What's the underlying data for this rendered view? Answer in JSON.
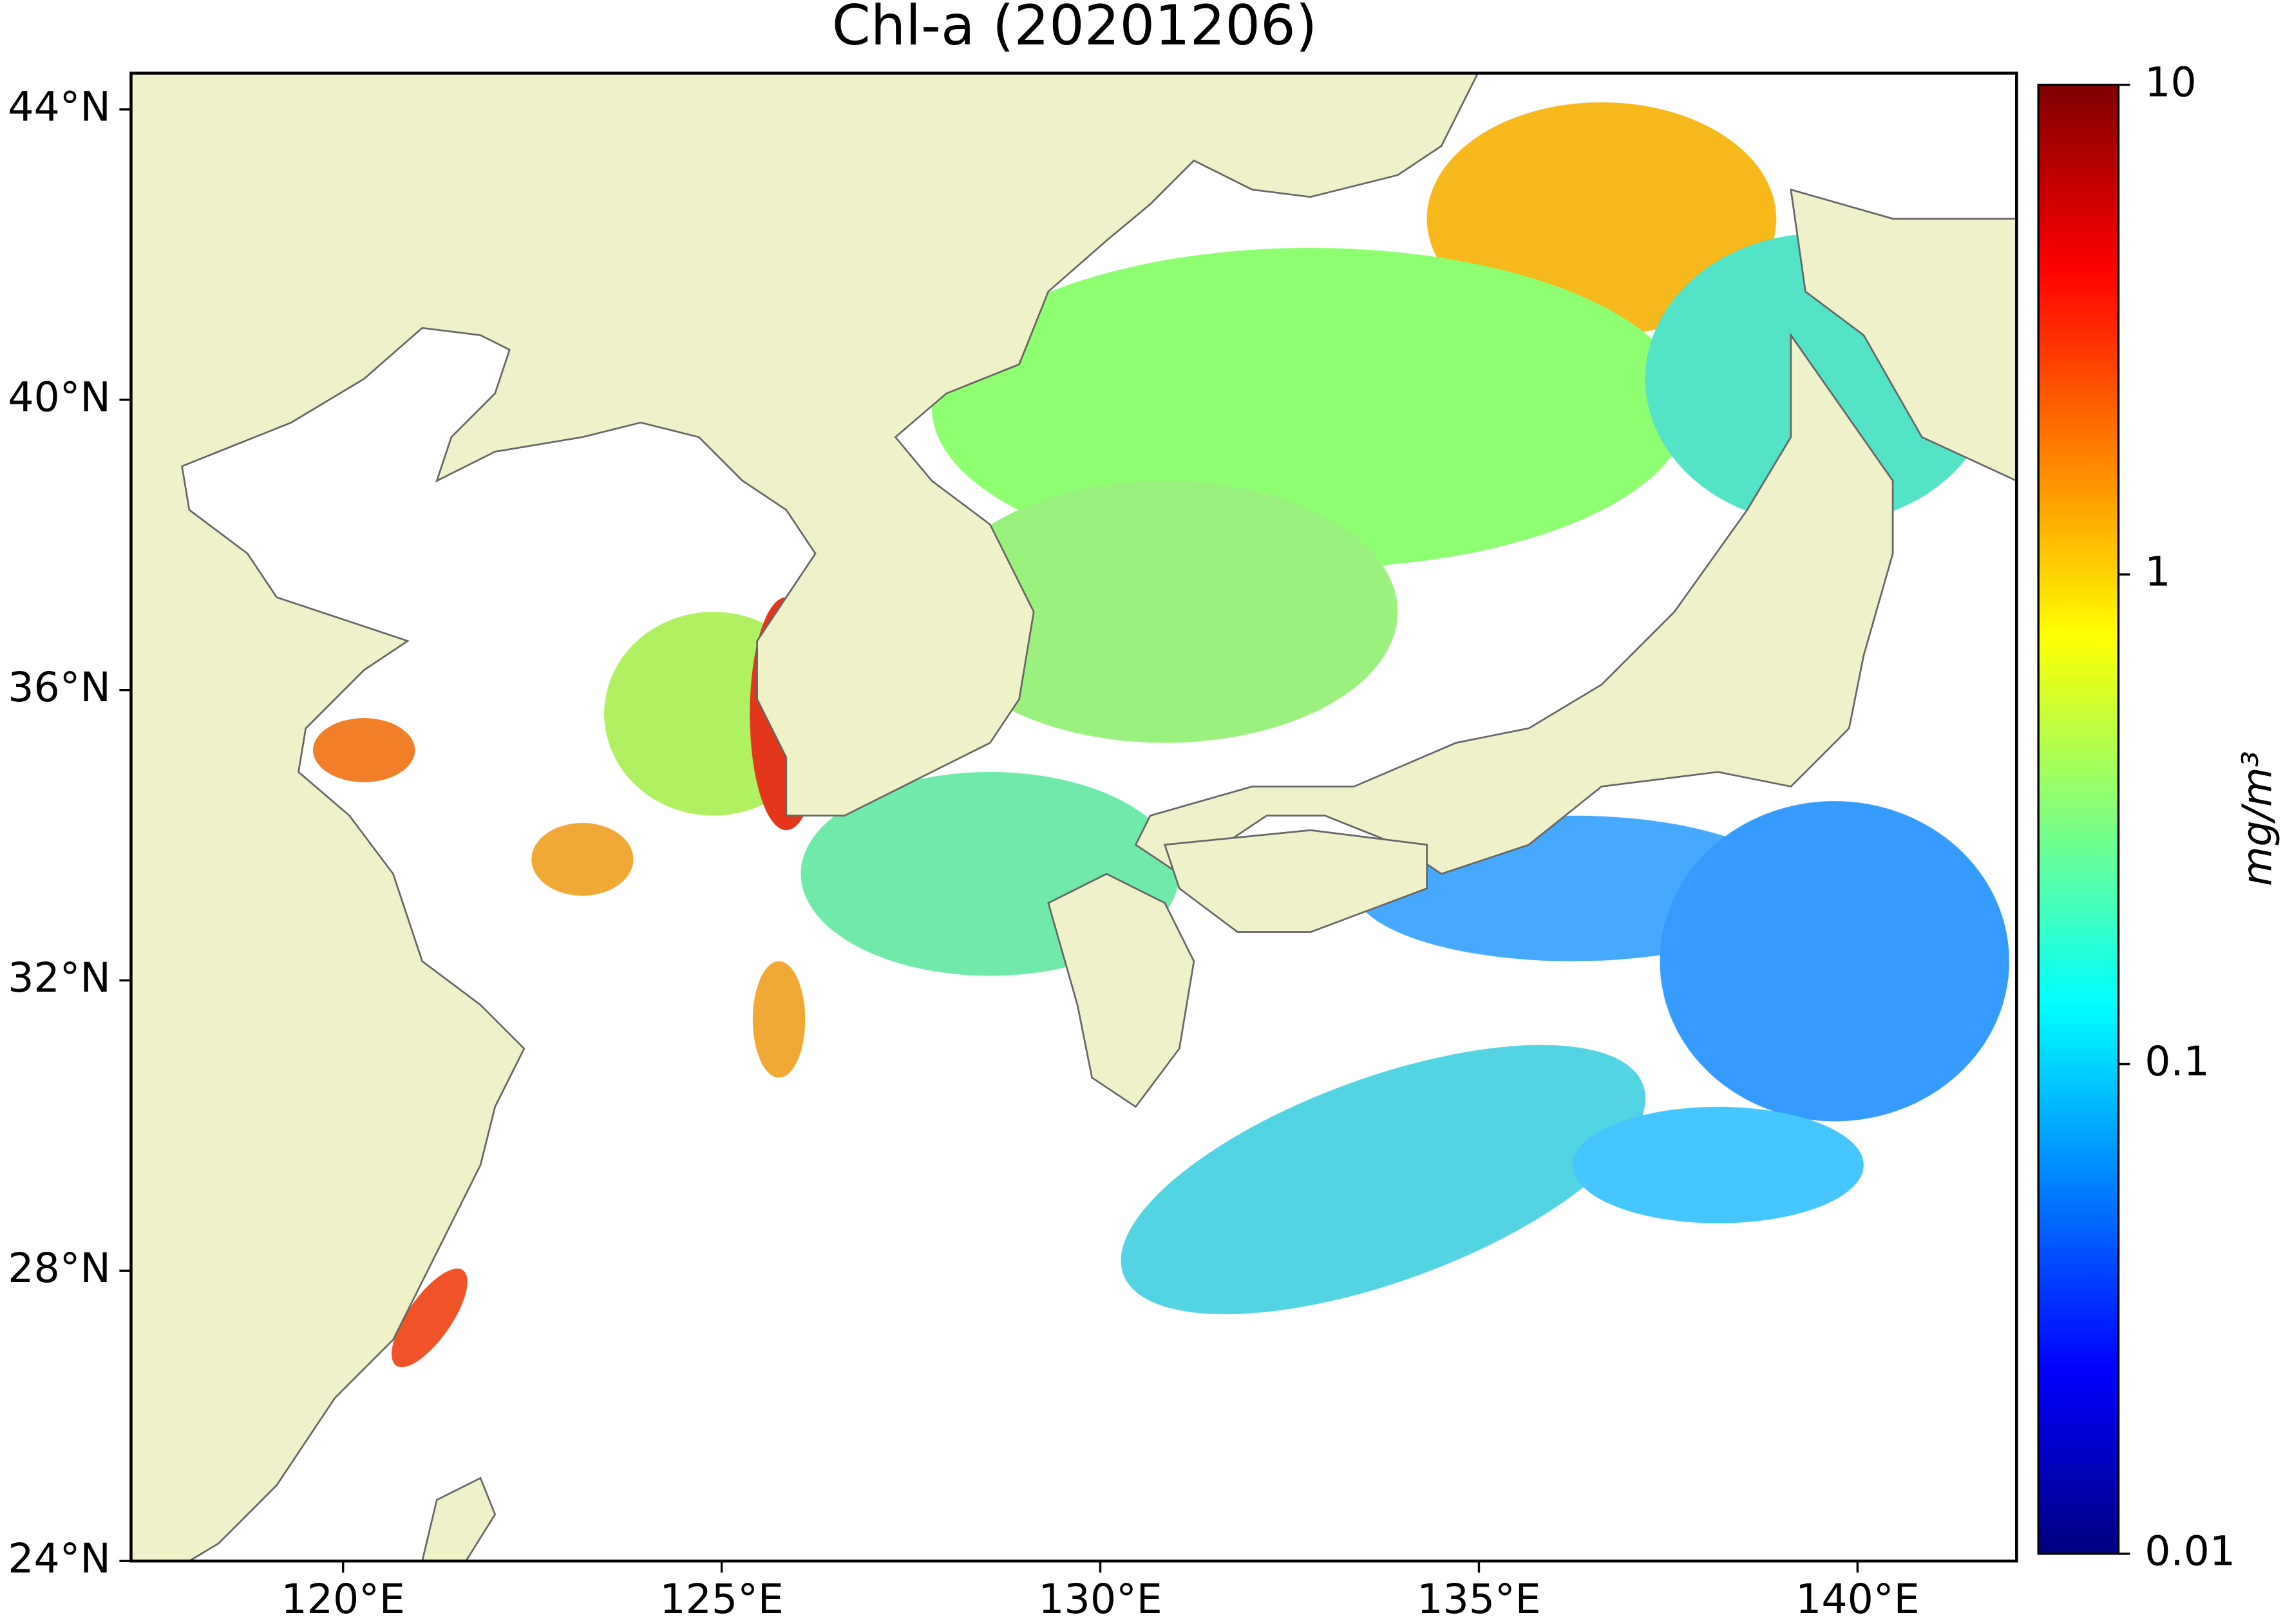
{
  "chart_data": {
    "type": "map",
    "title": "Chl-a (20201206)",
    "xlim": [
      117.2,
      142.1
    ],
    "ylim": [
      24,
      44.5
    ],
    "xticks": [
      {
        "value": 120,
        "label": "120°E"
      },
      {
        "value": 125,
        "label": "125°E"
      },
      {
        "value": 130,
        "label": "130°E"
      },
      {
        "value": 135,
        "label": "135°E"
      },
      {
        "value": 140,
        "label": "140°E"
      }
    ],
    "yticks": [
      {
        "value": 24,
        "label": "24°N"
      },
      {
        "value": 28,
        "label": "28°N"
      },
      {
        "value": 32,
        "label": "32°N"
      },
      {
        "value": 36,
        "label": "36°N"
      },
      {
        "value": 40,
        "label": "40°N"
      },
      {
        "value": 44,
        "label": "44°N"
      }
    ],
    "colorbar": {
      "label": "mg/m³",
      "scale": "log",
      "lim": [
        0.01,
        10
      ],
      "ticks": [
        0.01,
        0.1,
        1,
        10
      ],
      "colors": [
        "#00007f",
        "#0000ff",
        "#007fff",
        "#00ffff",
        "#7fff7f",
        "#ffff00",
        "#ff7f00",
        "#ff0000",
        "#7f0000"
      ]
    }
  }
}
